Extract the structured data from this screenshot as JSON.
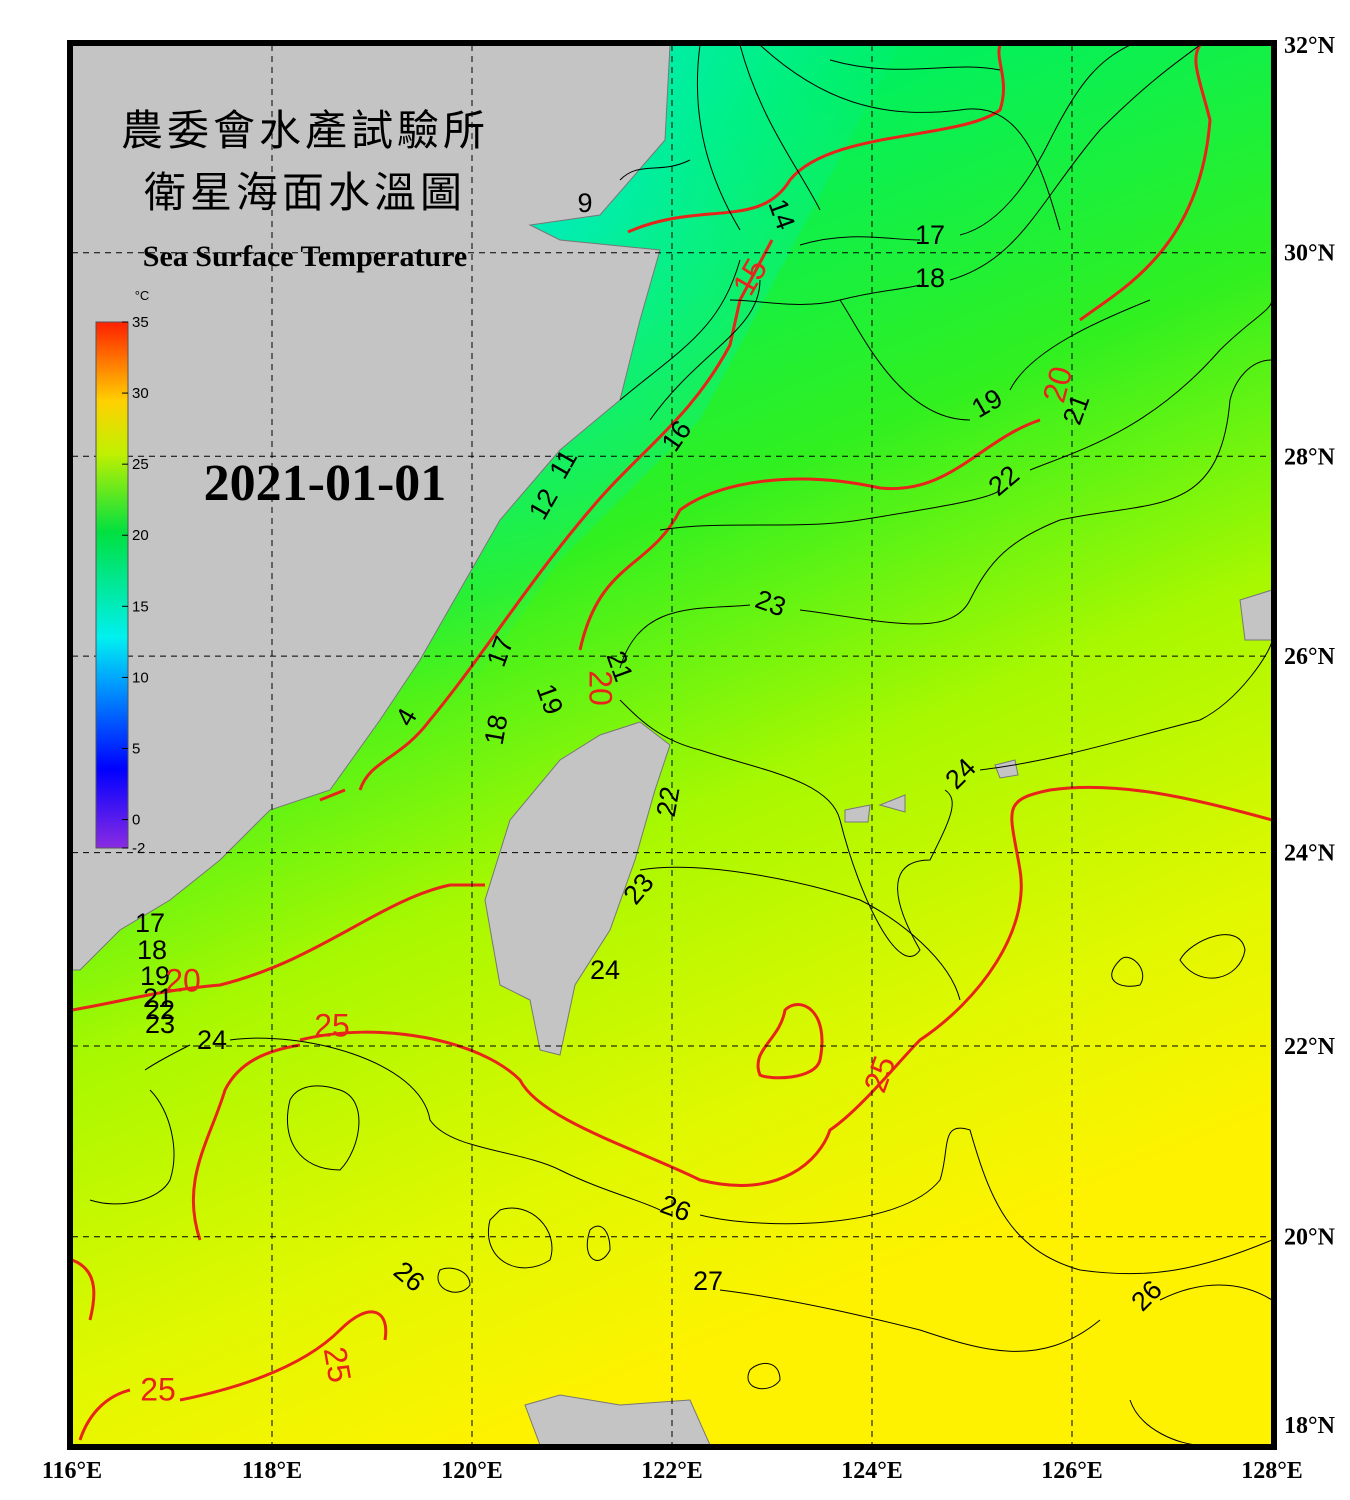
{
  "title": {
    "zh_line1": "農委會水產試驗所",
    "zh_line2": "衛星海面水溫圖",
    "en": "Sea Surface Temperature"
  },
  "date": "2021-01-01",
  "colorbar": {
    "unit": "°C",
    "lim": [
      -2,
      35
    ],
    "ticks": [
      35,
      30,
      25,
      20,
      15,
      10,
      5,
      0,
      -2
    ]
  },
  "lonlim": [
    116,
    128
  ],
  "latlim": [
    18,
    32
  ],
  "lon_ticks": [
    {
      "value": 116,
      "label": "116°E"
    },
    {
      "value": 118,
      "label": "118°E"
    },
    {
      "value": 120,
      "label": "120°E"
    },
    {
      "value": 122,
      "label": "122°E"
    },
    {
      "value": 124,
      "label": "124°E"
    },
    {
      "value": 126,
      "label": "126°E"
    },
    {
      "value": 128,
      "label": "128°E"
    }
  ],
  "lat_ticks": [
    {
      "value": 32,
      "label": "32°N"
    },
    {
      "value": 30,
      "label": "30°N"
    },
    {
      "value": 28,
      "label": "28°N"
    },
    {
      "value": 26,
      "label": "26°N"
    },
    {
      "value": 24,
      "label": "24°N"
    },
    {
      "value": 22,
      "label": "22°N"
    },
    {
      "value": 20,
      "label": "20°N"
    },
    {
      "value": 18,
      "label": "18°N"
    }
  ],
  "contour_labels": [
    "9",
    "14",
    "15",
    "17",
    "18",
    "19",
    "20",
    "21",
    "16",
    "22",
    "11",
    "12",
    "23",
    "17",
    "21",
    "20",
    "19",
    "18",
    "4",
    "24",
    "22",
    "23",
    "24",
    "17",
    "18",
    "19",
    "20",
    "21",
    "22",
    "23",
    "24",
    "25",
    "25",
    "26",
    "26",
    "27",
    "26",
    "25",
    "25"
  ]
}
